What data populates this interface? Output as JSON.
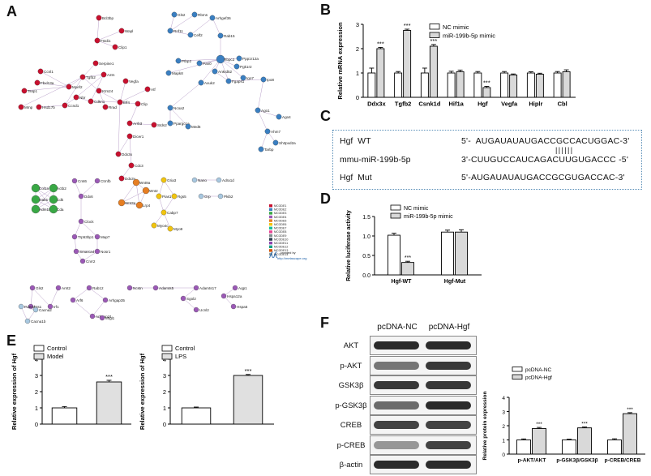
{
  "panels": {
    "a": "A",
    "b": "B",
    "c": "C",
    "d": "D",
    "e": "E",
    "f": "F"
  },
  "network": {
    "legend_modules": [
      "MCODE1",
      "MCODE2",
      "MCODE3",
      "MCODE4",
      "MCODE5",
      "MCODE6",
      "MCODE7",
      "MCODE8",
      "MCODE9",
      "MCODE10",
      "MCODE11",
      "MCODE12",
      "MCODE13",
      "MCODE14"
    ],
    "legend_colors": [
      "#c8102e",
      "#3a7fc1",
      "#39a845",
      "#9b59b6",
      "#e67e22",
      "#f1c40f",
      "#1abc9c",
      "#e84393",
      "#7f8c8d",
      "#2c3e50",
      "#8e44ad",
      "#16a085",
      "#d35400",
      "#95a5a6"
    ],
    "created_by": "created by",
    "metascape_url": "http://metascape.org",
    "cluster_red_nodes": [
      "Bcl3bp",
      "Wapl",
      "Fstdi1",
      "Clip1",
      "Ccnl1",
      "Fbxl13a",
      "Serpine1",
      "Tssp1",
      "Myef2",
      "Tgfb2",
      "A2m",
      "Hsd17b",
      "Ktm24",
      "Vegfa",
      "Atf",
      "Mmp",
      "Ccnd1",
      "Nbr",
      "Cdkn1",
      "Rrad",
      "Elf4",
      "Clip",
      "Arrb3",
      "Stds2",
      "Ddx3x",
      "Dicer1",
      "Cdc3",
      "Ddx3y"
    ],
    "cluster_blue_nodes": [
      "Gls2",
      "Rbms",
      "Rnf11",
      "Celf2",
      "Arhgef36",
      "Rab15",
      "Ptbp2",
      "Pan0",
      "Rbpc2",
      "Ppp1r12a",
      "Mapk8",
      "Ankrd52",
      "Pgk1r2",
      "Igo7",
      "Axuk2",
      "Fgaps1",
      "Ipo8",
      "Ncoa2",
      "Ppargc1a",
      "Med6",
      "Ago1",
      "Ago4",
      "Ahm7",
      "Sh3pxd2a",
      "Tarbp"
    ],
    "cluster_green_nodes": [
      "Col1a",
      "Actb2",
      "Gab1",
      "Cdk",
      "Adm15",
      "Cda"
    ],
    "cluster_purple_nodes": [
      "Cmt6",
      "Ctrnfb",
      "Ddx6",
      "Clock",
      "Trp53bp1",
      "Map7",
      "Smarca4",
      "Nosr1",
      "Cnrr2",
      "Gls2",
      "Arnt2",
      "Ets1",
      "Irf1",
      "Rab12",
      "Arf6",
      "Arhgap35",
      "Arhgap21",
      "Mfgl1",
      "Ncstn",
      "Adamts5",
      "Adamts17",
      "Aqp1",
      "Hspa12a",
      "Hspa5",
      "Sgol2",
      "Ucnl2"
    ],
    "cluster_orange_nodes": [
      "Wnt9a",
      "Wnt2",
      "Wnt3a",
      "Lrp4"
    ],
    "cluster_yellow_nodes": [
      "Gria3",
      "Pias1",
      "Rgs5",
      "Cabp7",
      "Myo4c",
      "Myo9"
    ],
    "cluster_other_nodes": [
      "Nano",
      "Adra1d",
      "Grp",
      "Pkib2",
      "Pde4d",
      "Cacna2",
      "Cacna1b"
    ]
  },
  "chart_b": {
    "legend": [
      "NC mimic",
      "miR-199b-5p mimic"
    ],
    "ylabel": "Relative mRNA expression",
    "ylim": [
      0,
      3
    ],
    "yticks": [
      "0",
      "1",
      "2",
      "3"
    ],
    "categories": [
      "Ddx3x",
      "Tgfb2",
      "Csnk1d",
      "Hif1a",
      "Hgf",
      "Vegfa",
      "Hiplr",
      "Cbl"
    ],
    "stars": [
      "***",
      "***",
      "***",
      "",
      "***",
      "",
      "",
      ""
    ]
  },
  "chart_d": {
    "legend": [
      "NC mimic",
      "miR-199b-5p mimic"
    ],
    "ylabel": "Relative luciferase activity",
    "ylim": [
      0,
      1.5
    ],
    "yticks": [
      "0.0",
      "0.5",
      "1.0",
      "1.5"
    ],
    "categories": [
      "Hgf-WT",
      "Hgf-Mut"
    ],
    "stars": [
      "***",
      ""
    ]
  },
  "chart_e1": {
    "legend": [
      "Control",
      "Model"
    ],
    "ylabel": "Relative expression of Hgf",
    "ylim": [
      0,
      4
    ],
    "yticks": [
      "0",
      "1",
      "2",
      "3",
      "4"
    ],
    "stars": "***"
  },
  "chart_e2": {
    "legend": [
      "Control",
      "LPS"
    ],
    "ylabel": "Relative expression of Hgf",
    "ylim": [
      0,
      4
    ],
    "yticks": [
      "0",
      "1",
      "2",
      "3",
      "4"
    ],
    "stars": "***"
  },
  "chart_f": {
    "legend": [
      "pcDNA-NC",
      "pcDNA-Hgf"
    ],
    "ylabel": "Relative protein expression",
    "ylim": [
      0,
      4
    ],
    "yticks": [
      "0",
      "1",
      "2",
      "3",
      "4"
    ],
    "categories": [
      "p-AKT/AKT",
      "p-GSK3β/GSK3β",
      "p-CREB/CREB"
    ],
    "stars": [
      "***",
      "***",
      "***"
    ]
  },
  "chart_data": [
    {
      "type": "bar",
      "categories": [
        "Ddx3x",
        "Tgfb2",
        "Csnk1d",
        "Hif1a",
        "Hgf",
        "Vegfa",
        "Hiplr",
        "Cbl"
      ],
      "series": [
        {
          "name": "NC mimic",
          "values": [
            1.0,
            1.0,
            1.0,
            1.0,
            1.0,
            1.0,
            1.0,
            1.0
          ],
          "errors": [
            0.2,
            0.06,
            0.2,
            0.07,
            0.06,
            0.06,
            0.05,
            0.06
          ]
        },
        {
          "name": "miR-199b-5p mimic",
          "values": [
            2.0,
            2.75,
            2.1,
            1.05,
            0.4,
            0.92,
            0.95,
            1.05
          ],
          "errors": [
            0.05,
            0.05,
            0.07,
            0.07,
            0.05,
            0.04,
            0.04,
            0.08
          ]
        }
      ],
      "ylabel": "Relative mRNA expression",
      "ylim": [
        0,
        3
      ]
    },
    {
      "type": "bar",
      "categories": [
        "Hgf-WT",
        "Hgf-Mut"
      ],
      "series": [
        {
          "name": "NC mimic",
          "values": [
            1.02,
            1.1
          ],
          "errors": [
            0.05,
            0.05
          ]
        },
        {
          "name": "miR-199b-5p mimic",
          "values": [
            0.32,
            1.1
          ],
          "errors": [
            0.03,
            0.06
          ]
        }
      ],
      "ylabel": "Relative luciferase activity",
      "ylim": [
        0,
        1.5
      ]
    },
    {
      "type": "bar",
      "categories": [
        "Control",
        "Model"
      ],
      "series": [
        {
          "values": [
            1.0,
            2.6
          ],
          "errors": [
            0.08,
            0.1
          ]
        }
      ],
      "ylabel": "Relative expression of Hgf",
      "ylim": [
        0,
        4
      ]
    },
    {
      "type": "bar",
      "categories": [
        "Control",
        "LPS"
      ],
      "series": [
        {
          "values": [
            1.0,
            3.0
          ],
          "errors": [
            0.05,
            0.06
          ]
        }
      ],
      "ylabel": "Relative expression of Hgf",
      "ylim": [
        0,
        4
      ]
    },
    {
      "type": "bar",
      "categories": [
        "p-AKT/AKT",
        "p-GSK3β/GSK3β",
        "p-CREB/CREB"
      ],
      "series": [
        {
          "name": "pcDNA-NC",
          "values": [
            1.0,
            1.0,
            1.0
          ],
          "errors": [
            0.07,
            0.05,
            0.08
          ]
        },
        {
          "name": "pcDNA-Hgf",
          "values": [
            1.8,
            1.85,
            2.85
          ],
          "errors": [
            0.08,
            0.06,
            0.07
          ]
        }
      ],
      "ylabel": "Relative protein expression",
      "ylim": [
        0,
        4
      ]
    }
  ],
  "sequences": {
    "hgf_wt_label": "Hgf  WT",
    "hgf_wt_seq": "5'-  AUGAUAUAUGACCGCCACUGGAC-3'",
    "mirna_label": "mmu-miR-199b-5p",
    "mirna_seq": "3'-CUUGUCCAUCAGACUUGUGACCC -5'",
    "pairing": "||||||",
    "hgf_mut_label": "Hgf  Mut",
    "hgf_mut_seq": "5'-AUGAUAUAUGACCGCGUGACCAC-3'"
  },
  "western": {
    "col_headers": [
      "pcDNA-NC",
      "pcDNA-Hgf"
    ],
    "rows": [
      "AKT",
      "p-AKT",
      "GSK3β",
      "p-GSK3β",
      "CREB",
      "p-CREB",
      "β-actin"
    ],
    "band_intensity_nc": [
      0.9,
      0.55,
      0.85,
      0.6,
      0.8,
      0.35,
      0.9
    ],
    "band_intensity_hgf": [
      0.9,
      0.85,
      0.85,
      0.9,
      0.8,
      0.8,
      0.9
    ]
  }
}
